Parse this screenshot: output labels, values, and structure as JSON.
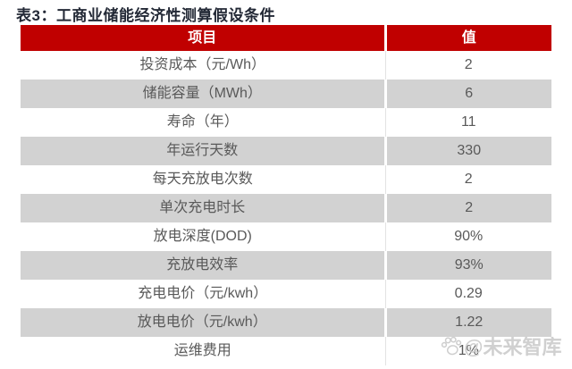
{
  "title": "表3：工商业储能经济性测算假设条件",
  "table": {
    "headers": {
      "item": "项目",
      "value": "值"
    },
    "rows": [
      {
        "item": "投资成本（元/Wh）",
        "value": "2"
      },
      {
        "item": "储能容量（MWh）",
        "value": "6"
      },
      {
        "item": "寿命（年）",
        "value": "11"
      },
      {
        "item": "年运行天数",
        "value": "330"
      },
      {
        "item": "每天充放电次数",
        "value": "2"
      },
      {
        "item": "单次充电时长",
        "value": "2"
      },
      {
        "item": "放电深度(DOD)",
        "value": "90%"
      },
      {
        "item": "充放电效率",
        "value": "93%"
      },
      {
        "item": "充电电价（元/kwh）",
        "value": "0.29"
      },
      {
        "item": "放电电价（元/kwh）",
        "value": "1.22"
      },
      {
        "item": "运维费用",
        "value": "1%"
      }
    ]
  },
  "watermark": {
    "icon": "paw-icon",
    "text": "@未来智库"
  },
  "colors": {
    "header_bg": "#C00000",
    "header_text": "#FFFFFF",
    "row_alt_bg": "#D2D2D2",
    "cell_text": "#595959",
    "title_text": "#232936",
    "watermark": "#CBCBCB"
  }
}
